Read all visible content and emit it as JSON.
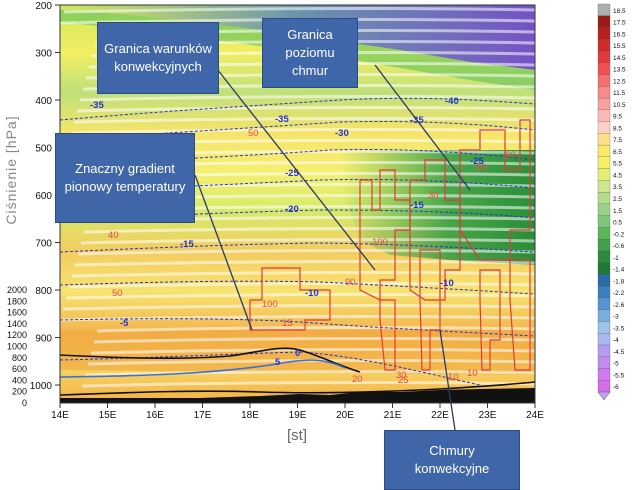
{
  "axes": {
    "pressure_label": "Ciśnienie [hPa]",
    "pressure_ticks": [
      "200",
      "300",
      "400",
      "500",
      "600",
      "700",
      "800",
      "900",
      "1000"
    ],
    "height_ticks": [
      "2000",
      "1800",
      "1600",
      "1400",
      "1200",
      "1000",
      "800",
      "600",
      "400",
      "200",
      "0"
    ],
    "x_label": "[st]",
    "x_ticks": [
      "14E",
      "15E",
      "16E",
      "17E",
      "18E",
      "19E",
      "20E",
      "21E",
      "22E",
      "23E",
      "24E"
    ]
  },
  "colorbar": {
    "ticks": [
      "18.5",
      "17.5",
      "16.5",
      "15.5",
      "14.5",
      "13.5",
      "12.5",
      "11.5",
      "10.5",
      "9.5",
      "8.5",
      "7.5",
      "6.5",
      "5.5",
      "4.5",
      "3.5",
      "2.5",
      "1.5",
      "0.5",
      "-0.2",
      "-0.6",
      "-1",
      "-1.4",
      "-1.8",
      "-2.2",
      "-2.6",
      "-3",
      "-3.5",
      "-4",
      "-4.5",
      "-5",
      "-5.5",
      "-6"
    ],
    "colors": [
      "#b0b0b0",
      "#9b1a1a",
      "#b82020",
      "#d02a2a",
      "#e23a3a",
      "#f05050",
      "#f47070",
      "#f88a8a",
      "#fba0a0",
      "#fdb8b8",
      "#ffd0c8",
      "#fde08a",
      "#fbe96a",
      "#f5f065",
      "#e6ef75",
      "#cfe88a",
      "#b4dd8a",
      "#9ad28a",
      "#7ec67a",
      "#5bb65a",
      "#3fa24a",
      "#2c8a3e",
      "#1f7a36",
      "#2a6aa8",
      "#3a7fc0",
      "#5596d2",
      "#7aaede",
      "#9cc4e8",
      "#a8b8f0",
      "#b49cf0",
      "#c08cf0",
      "#cc7cee",
      "#d46cec"
    ]
  },
  "contour_labels": {
    "temperature": [
      "-35",
      "-35",
      "-30",
      "-25",
      "-20",
      "-15",
      "-10",
      "-5",
      "0",
      "5",
      "-40",
      "-35",
      "-25",
      "-15",
      "-10"
    ],
    "cloud": [
      "90",
      "90",
      "50",
      "30",
      "100",
      "100",
      "90",
      "50",
      "40",
      "15",
      "30",
      "20",
      "10",
      "25",
      "10"
    ]
  },
  "callouts": [
    {
      "text": "Granica warunków konwekcyjnych"
    },
    {
      "text": "Granica poziomu chmur"
    },
    {
      "text": "Znaczny gradient pionowy temperatury"
    },
    {
      "text": "Chmury konwekcyjne"
    }
  ]
}
